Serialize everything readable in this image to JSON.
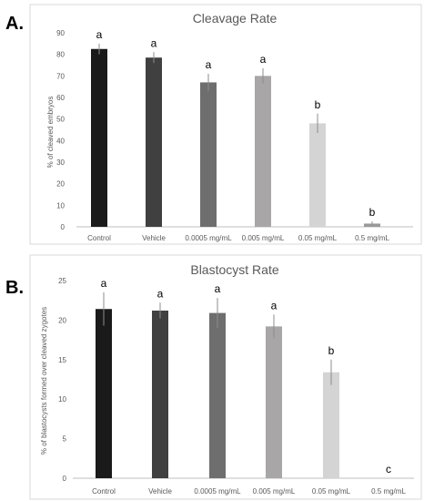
{
  "chart_data": [
    {
      "type": "bar",
      "panel_label": "A.",
      "title": "Cleavage Rate",
      "ylabel": "% of cleaved embryos",
      "xlabel": "",
      "ylim": [
        0,
        90
      ],
      "yticks": [
        0,
        10,
        20,
        30,
        40,
        50,
        60,
        70,
        80,
        90
      ],
      "grid": false,
      "categories": [
        "Control",
        "Vehicle",
        "0.0005 mg/mL",
        "0.005 mg/mL",
        "0.05 mg/mL",
        "0.5 mg/mL"
      ],
      "values": [
        82.5,
        78.5,
        67,
        70,
        48,
        1.5
      ],
      "errors": [
        2.5,
        2.5,
        4,
        3.5,
        4.5,
        1
      ],
      "letters": [
        "a",
        "a",
        "a",
        "a",
        "b",
        "b"
      ],
      "colors": [
        "#1a1a1a",
        "#404040",
        "#6e6e6e",
        "#a8a6a6",
        "#d4d4d4",
        "#9a9a9a"
      ]
    },
    {
      "type": "bar",
      "panel_label": "B.",
      "title": "Blastocyst Rate",
      "ylabel": "% of blastocysts formed over cleaved zygotes",
      "xlabel": "",
      "ylim": [
        0,
        25
      ],
      "yticks": [
        0,
        5,
        10,
        15,
        20,
        25
      ],
      "grid": false,
      "categories": [
        "Control",
        "Vehicle",
        "0.0005 mg/mL",
        "0.005 mg/mL",
        "0.05 mg/mL",
        "0.5 mg/mL"
      ],
      "values": [
        21.4,
        21.2,
        20.9,
        19.2,
        13.4,
        0
      ],
      "errors": [
        2.1,
        1.0,
        1.9,
        1.5,
        1.6,
        0
      ],
      "letters": [
        "a",
        "a",
        "a",
        "a",
        "b",
        "c"
      ],
      "colors": [
        "#1a1a1a",
        "#404040",
        "#6e6e6e",
        "#a8a6a6",
        "#d4d4d4",
        "#d4d4d4"
      ]
    }
  ]
}
